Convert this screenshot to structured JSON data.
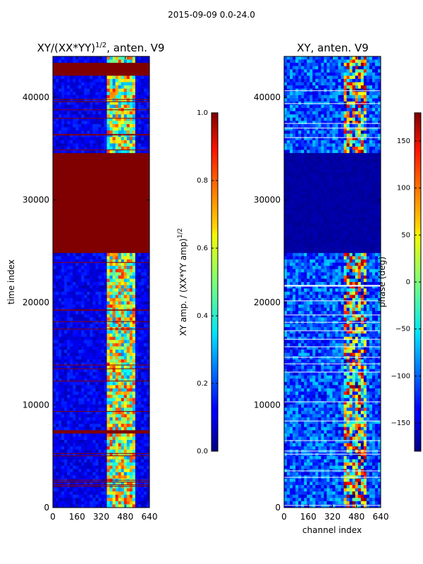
{
  "figure": {
    "title": "2015-09-09 0.0-24.0"
  },
  "chart_data": [
    {
      "type": "heatmap",
      "title": "XY/(XX*YY)",
      "title_exponent": "1/2",
      "title_suffix": ", anten. V9",
      "xlabel": "",
      "ylabel": "time index",
      "xlim": [
        0,
        640
      ],
      "ylim": [
        0,
        44000
      ],
      "xticks": [
        0,
        160,
        320,
        480,
        640
      ],
      "yticks": [
        0,
        10000,
        20000,
        30000,
        40000
      ],
      "colorbar": {
        "label": "XY amp. / (XX*YY amp)",
        "label_exponent": "1/2",
        "range": [
          0.0,
          1.0
        ],
        "ticks": [
          0.0,
          0.2,
          0.4,
          0.6,
          0.8,
          1.0
        ],
        "tick_labels": [
          "0.0",
          "0.2",
          "0.4",
          "0.6",
          "0.8",
          "1.0"
        ],
        "colormap": "jet"
      },
      "saturated_time_bands": [
        [
          24800,
          34700
        ],
        [
          42200,
          43500
        ],
        [
          7300,
          7600
        ]
      ],
      "active_channel_range": [
        360,
        540
      ]
    },
    {
      "type": "heatmap",
      "title": "XY, anten. V9",
      "xlabel": "channel index",
      "ylabel": "",
      "xlim": [
        0,
        640
      ],
      "ylim": [
        0,
        44000
      ],
      "xticks": [
        0,
        160,
        320,
        480,
        640
      ],
      "yticks": [
        0,
        10000,
        20000,
        30000,
        40000
      ],
      "colorbar": {
        "label": "phase (deg)",
        "range": [
          -180,
          180
        ],
        "ticks": [
          -150,
          -100,
          -50,
          0,
          50,
          100,
          150
        ],
        "tick_labels": [
          "−150",
          "−100",
          "−50",
          "0",
          "50",
          "100",
          "150"
        ],
        "colormap": "jet"
      },
      "flagged_time_bands": [
        [
          24800,
          34700
        ]
      ],
      "active_channel_range": [
        400,
        540
      ]
    }
  ]
}
